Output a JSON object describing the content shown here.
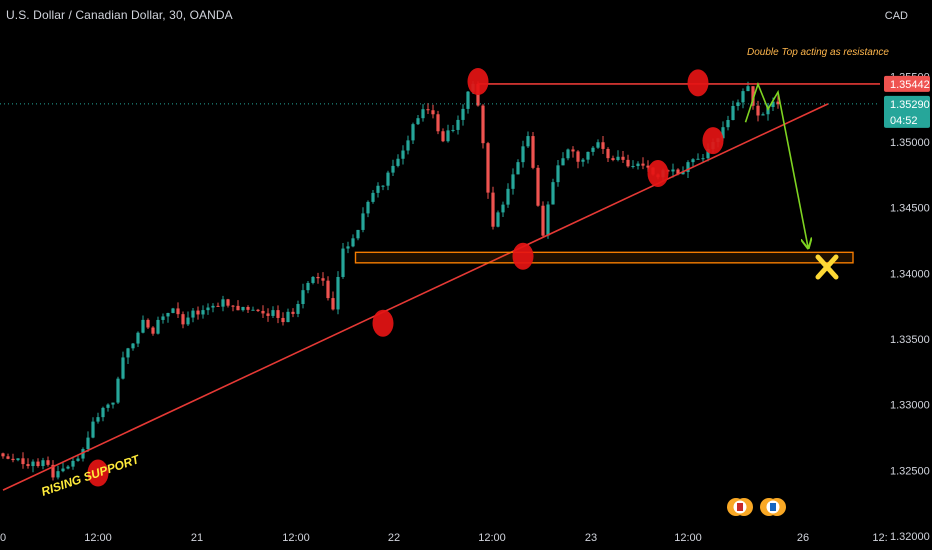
{
  "header": {
    "title": "U.S. Dollar / Canadian Dollar, 30, OANDA",
    "currency": "CAD"
  },
  "annotations": {
    "double_top": "Double Top acting as resistance",
    "rising_support": "RISING SUPPORT"
  },
  "price_badges": {
    "resistance": "1.35442",
    "current": "1.35290",
    "countdown": "04:52"
  },
  "colors": {
    "background": "#000000",
    "bull": "#26a69a",
    "bear": "#ef5350",
    "trendline": "#e53935",
    "zone": "#f57c00",
    "projection": "#7ed321",
    "annotation_text": "#ffb74d",
    "rising_text": "#ffeb3b",
    "x_marker": "#fdd835",
    "current_badge": "#26a69a",
    "resistance_badge": "#ef5350"
  },
  "chart_data": {
    "type": "candlestick",
    "y_ticks": [
      "1.35500",
      "1.35000",
      "1.34500",
      "1.34000",
      "1.33500",
      "1.33000",
      "1.32500",
      "1.32000"
    ],
    "x_ticks": [
      "0",
      "12:00",
      "21",
      "12:00",
      "22",
      "12:00",
      "23",
      "12:00",
      "26",
      "12:"
    ],
    "ylim": [
      1.3192,
      1.3578
    ],
    "levels": {
      "resistance": 1.35442,
      "support_zone": [
        1.3408,
        1.3416
      ],
      "current": 1.3529
    },
    "ohlc_path": [
      [
        0,
        1.3263
      ],
      [
        3,
        1.3259
      ],
      [
        6,
        1.3254
      ],
      [
        9,
        1.3257
      ],
      [
        11,
        1.3246
      ],
      [
        13,
        1.3252
      ],
      [
        15,
        1.3258
      ],
      [
        17,
        1.3266
      ],
      [
        19,
        1.3288
      ],
      [
        21,
        1.3296
      ],
      [
        23,
        1.3302
      ],
      [
        25,
        1.3336
      ],
      [
        27,
        1.3348
      ],
      [
        29,
        1.3365
      ],
      [
        31,
        1.3357
      ],
      [
        33,
        1.3368
      ],
      [
        35,
        1.3372
      ],
      [
        37,
        1.3364
      ],
      [
        39,
        1.3371
      ],
      [
        41,
        1.337
      ],
      [
        43,
        1.3374
      ],
      [
        45,
        1.3378
      ],
      [
        47,
        1.3373
      ],
      [
        49,
        1.3374
      ],
      [
        51,
        1.3375
      ],
      [
        53,
        1.3368
      ],
      [
        55,
        1.3372
      ],
      [
        57,
        1.3365
      ],
      [
        59,
        1.3371
      ],
      [
        61,
        1.3387
      ],
      [
        63,
        1.3397
      ],
      [
        65,
        1.3392
      ],
      [
        67,
        1.3373
      ],
      [
        69,
        1.3418
      ],
      [
        71,
        1.3424
      ],
      [
        73,
        1.3446
      ],
      [
        75,
        1.3462
      ],
      [
        77,
        1.3468
      ],
      [
        79,
        1.3482
      ],
      [
        81,
        1.3496
      ],
      [
        83,
        1.3512
      ],
      [
        85,
        1.3525
      ],
      [
        87,
        1.3519
      ],
      [
        89,
        1.3503
      ],
      [
        91,
        1.3509
      ],
      [
        93,
        1.3528
      ],
      [
        95,
        1.3545
      ],
      [
        96,
        1.3528
      ],
      [
        97,
        1.3498
      ],
      [
        98,
        1.3464
      ],
      [
        99,
        1.3437
      ],
      [
        100,
        1.3448
      ],
      [
        102,
        1.3462
      ],
      [
        104,
        1.3487
      ],
      [
        106,
        1.3502
      ],
      [
        107,
        1.3478
      ],
      [
        108,
        1.3452
      ],
      [
        109,
        1.3428
      ],
      [
        110,
        1.3451
      ],
      [
        112,
        1.3485
      ],
      [
        114,
        1.3495
      ],
      [
        116,
        1.3487
      ],
      [
        118,
        1.3492
      ],
      [
        120,
        1.3497
      ],
      [
        122,
        1.3489
      ],
      [
        124,
        1.3488
      ],
      [
        126,
        1.3481
      ],
      [
        128,
        1.3486
      ],
      [
        130,
        1.3478
      ],
      [
        132,
        1.3473
      ],
      [
        134,
        1.3479
      ],
      [
        136,
        1.3476
      ],
      [
        138,
        1.3483
      ],
      [
        140,
        1.3487
      ],
      [
        142,
        1.3492
      ],
      [
        144,
        1.3502
      ],
      [
        146,
        1.3518
      ],
      [
        148,
        1.3532
      ],
      [
        149,
        1.3541
      ],
      [
        150,
        1.3544
      ],
      [
        151,
        1.3528
      ],
      [
        152,
        1.3519
      ],
      [
        154,
        1.3526
      ],
      [
        155,
        1.3529
      ]
    ],
    "rising_support_line": [
      [
        0,
        1.3235
      ],
      [
        165,
        1.3529
      ]
    ],
    "double_top_line": [
      [
        95,
        1.35442
      ],
      [
        172,
        1.35442
      ]
    ],
    "projection_path": [
      [
        148.5,
        1.3515
      ],
      [
        151,
        1.3544
      ],
      [
        153,
        1.3525
      ],
      [
        155,
        1.3538
      ],
      [
        161,
        1.342
      ]
    ],
    "circle_markers": [
      [
        19,
        1.3248
      ],
      [
        76,
        1.3362
      ],
      [
        95,
        1.3546
      ],
      [
        104,
        1.3413
      ],
      [
        131,
        1.3476
      ],
      [
        139,
        1.3545
      ],
      [
        142,
        1.3501
      ]
    ]
  }
}
